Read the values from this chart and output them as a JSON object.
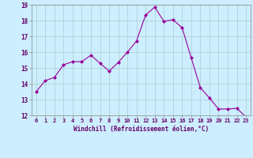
{
  "x": [
    0,
    1,
    2,
    3,
    4,
    5,
    6,
    7,
    8,
    9,
    10,
    11,
    12,
    13,
    14,
    15,
    16,
    17,
    18,
    19,
    20,
    21,
    22,
    23
  ],
  "y": [
    13.5,
    14.2,
    14.4,
    15.2,
    15.4,
    15.4,
    15.8,
    15.3,
    14.8,
    15.35,
    16.0,
    16.7,
    18.35,
    18.85,
    17.95,
    18.05,
    17.55,
    15.65,
    13.75,
    13.1,
    12.4,
    12.4,
    12.45,
    11.9
  ],
  "line_color": "#990099",
  "marker_color": "#990099",
  "bg_color": "#cceeff",
  "grid_color": "#aacccc",
  "xlabel": "Windchill (Refroidissement éolien,°C)",
  "xlabel_color": "#660066",
  "tick_color": "#660066",
  "ylim_min": 12,
  "ylim_max": 19,
  "xlim_min": -0.5,
  "xlim_max": 23.5,
  "yticks": [
    12,
    13,
    14,
    15,
    16,
    17,
    18,
    19
  ],
  "xticks": [
    0,
    1,
    2,
    3,
    4,
    5,
    6,
    7,
    8,
    9,
    10,
    11,
    12,
    13,
    14,
    15,
    16,
    17,
    18,
    19,
    20,
    21,
    22,
    23
  ]
}
